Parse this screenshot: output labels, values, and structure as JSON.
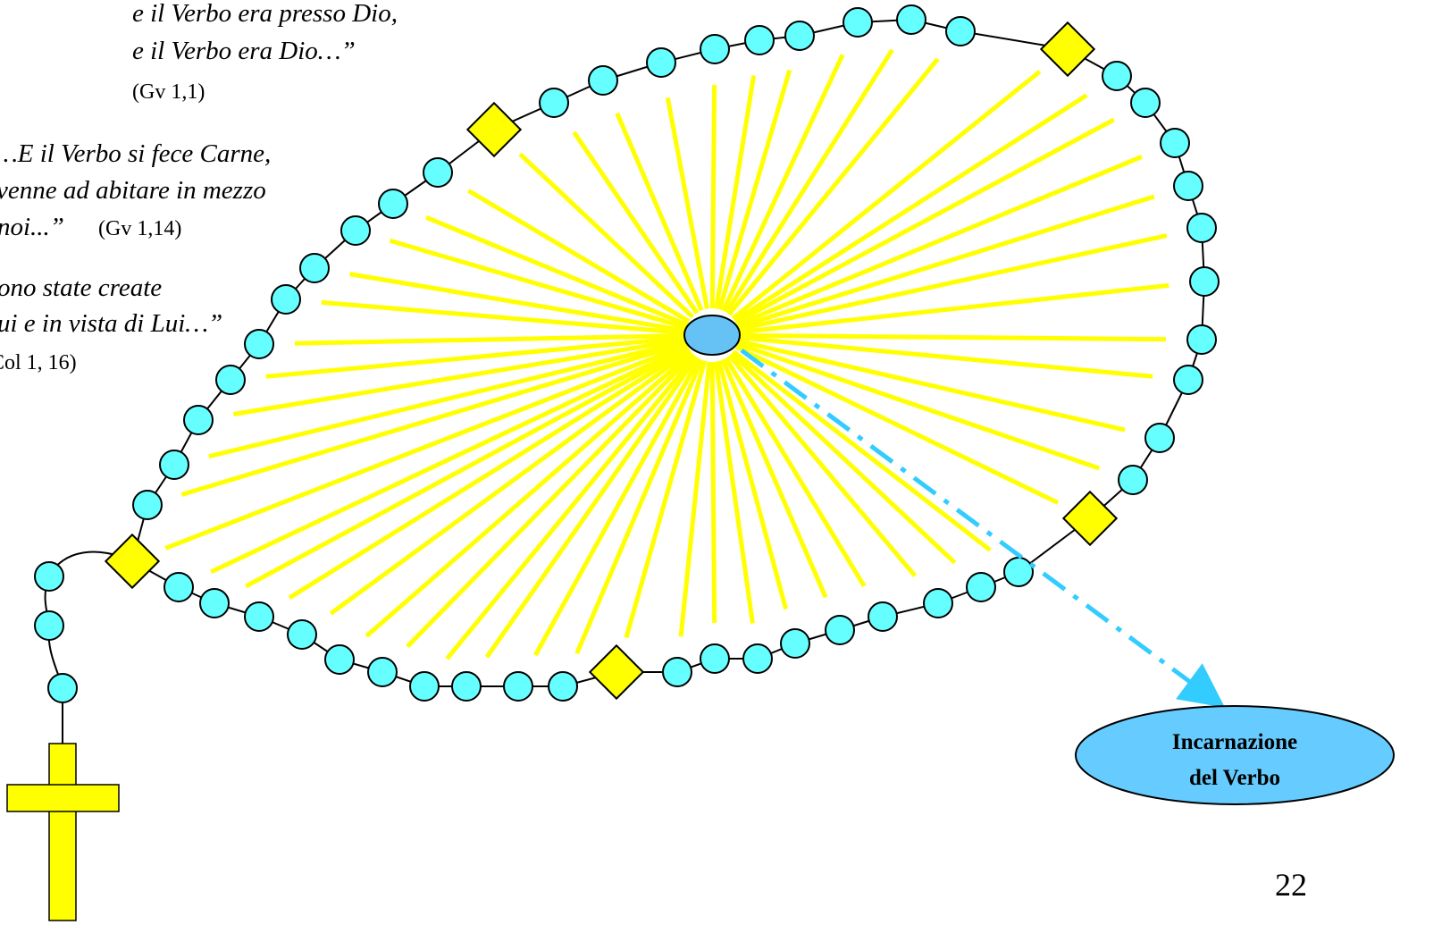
{
  "quotes": [
    {
      "lines": [
        "e il Verbo era presso Dio,",
        "e il Verbo era Dio…”"
      ],
      "ref": "(Gv 1,1)"
    },
    {
      "lines": [
        "…E il Verbo si fece Carne,",
        "venne ad abitare in mezzo",
        "noi...”"
      ],
      "ref": "(Gv 1,14)"
    },
    {
      "lines": [
        "ono state create",
        "ui e in vista di Lui…”"
      ],
      "ref": "Col 1, 16)"
    }
  ],
  "callout": {
    "lines": [
      "Incarnazione",
      "del Verbo"
    ]
  },
  "page_number": "22"
}
